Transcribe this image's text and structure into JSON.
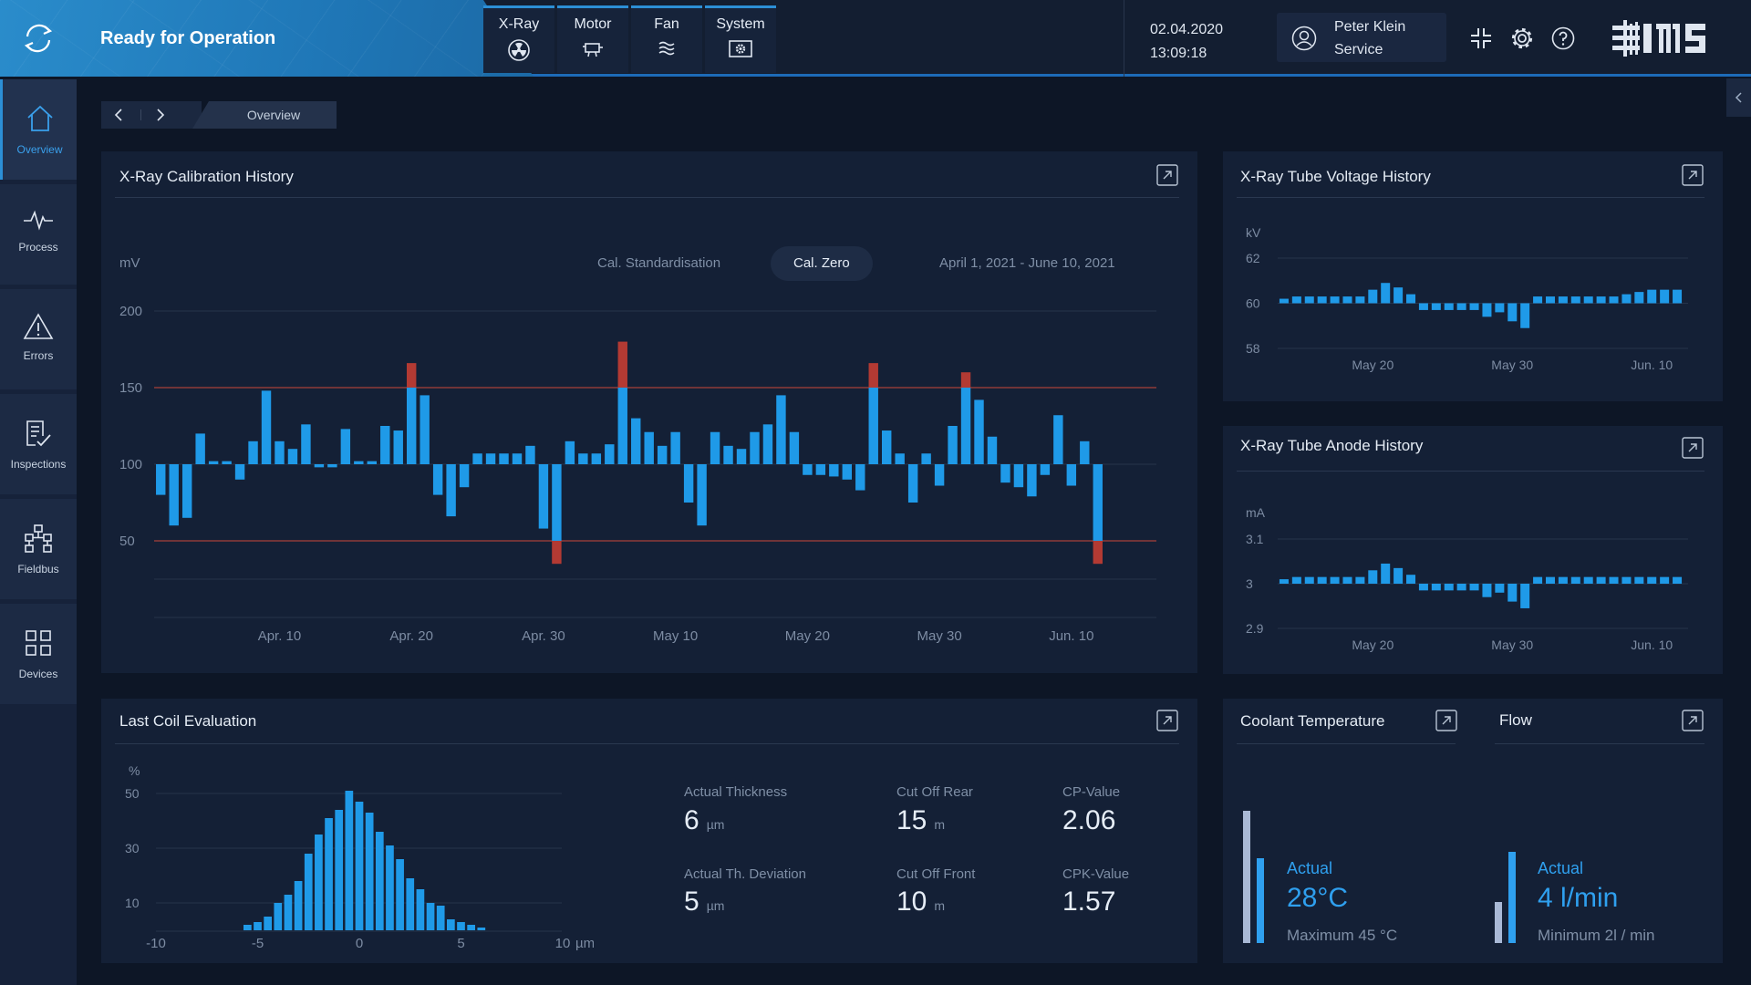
{
  "header": {
    "status": "Ready for Operation",
    "modules": [
      {
        "label": "X-Ray",
        "icon": "radiation-icon"
      },
      {
        "label": "Motor",
        "icon": "motor-icon"
      },
      {
        "label": "Fan",
        "icon": "fan-icon"
      },
      {
        "label": "System",
        "icon": "system-icon"
      }
    ],
    "date": "02.04.2020",
    "time": "13:09:18",
    "user": {
      "name": "Peter Klein",
      "role": "Service"
    },
    "logo": "IMS"
  },
  "sidebar": {
    "items": [
      {
        "label": "Overview",
        "icon": "home-icon",
        "active": true
      },
      {
        "label": "Process",
        "icon": "pulse-icon"
      },
      {
        "label": "Errors",
        "icon": "warning-icon"
      },
      {
        "label": "Inspections",
        "icon": "checklist-icon"
      },
      {
        "label": "Fieldbus",
        "icon": "network-icon"
      },
      {
        "label": "Devices",
        "icon": "devices-icon"
      }
    ]
  },
  "breadcrumb": {
    "current": "Overview"
  },
  "calibration": {
    "title": "X-Ray Calibration History",
    "unit": "mV",
    "options": [
      "Cal. Standardisation",
      "Cal. Zero"
    ],
    "selected": "Cal. Zero",
    "range": "April 1, 2021 -  June 10, 2021"
  },
  "voltage": {
    "title": "X-Ray Tube Voltage History",
    "unit": "kV"
  },
  "anode": {
    "title": "X-Ray Tube Anode History",
    "unit": "mA"
  },
  "coil": {
    "title": "Last Coil Evaluation",
    "unit": "%",
    "stats": {
      "thickness": {
        "label": "Actual Thickness",
        "value": "6",
        "unit": "µm"
      },
      "cut_rear": {
        "label": "Cut Off Rear",
        "value": "15",
        "unit": "m"
      },
      "cp": {
        "label": "CP-Value",
        "value": "2.06"
      },
      "deviation": {
        "label": "Actual Th. Deviation",
        "value": "5",
        "unit": "µm"
      },
      "cut_front": {
        "label": "Cut Off Front",
        "value": "10",
        "unit": "m"
      },
      "cpk": {
        "label": "CPK-Value",
        "value": "1.57"
      }
    }
  },
  "coolant": {
    "title": "Coolant Temperature",
    "actual_label": "Actual",
    "actual": "28°C",
    "limit": "Maximum 45 °C",
    "level_fraction": 0.62,
    "max_fraction": 0.97
  },
  "flow": {
    "title": "Flow",
    "actual_label": "Actual",
    "actual": "4 l/min",
    "limit": "Minimum 2l / min",
    "level_fraction": 0.78,
    "min_fraction": 0.35
  },
  "colors": {
    "accent": "#2fa0ef",
    "bar": "#1f9ae8",
    "alarm": "#b33a33",
    "limit_line": "#a8403a",
    "status_bg": "#2a8ccb"
  },
  "chart_data": [
    {
      "type": "bar",
      "title": "X-Ray Calibration History",
      "ylabel": "mV",
      "ylim": [
        0,
        200
      ],
      "yticks": [
        50,
        100,
        150,
        200
      ],
      "baseline": 100,
      "limits": [
        50,
        150
      ],
      "xlabels": [
        "Apr. 10",
        "Apr. 20",
        "Apr. 30",
        "May 10",
        "May 20",
        "May 30",
        "Jun. 10"
      ],
      "xlabel_index": [
        9,
        19,
        29,
        39,
        49,
        59,
        69
      ],
      "values": [
        80,
        60,
        65,
        120,
        102,
        102,
        90,
        115,
        148,
        115,
        110,
        126,
        98,
        98,
        123,
        102,
        102,
        125,
        122,
        166,
        145,
        80,
        66,
        85,
        107,
        107,
        107,
        107,
        112,
        58,
        35,
        115,
        107,
        107,
        113,
        180,
        130,
        121,
        112,
        121,
        75,
        60,
        121,
        112,
        110,
        121,
        126,
        145,
        121,
        93,
        93,
        92,
        90,
        83,
        166,
        122,
        107,
        75,
        107,
        86,
        125,
        160,
        142,
        118,
        88,
        85,
        79,
        93,
        132,
        86,
        115,
        35
      ],
      "alarm_threshold": {
        "high": 150,
        "low": 50
      }
    },
    {
      "type": "bar",
      "title": "X-Ray Tube Voltage History",
      "ylabel": "kV",
      "ylim": [
        58,
        62
      ],
      "yticks": [
        58,
        60,
        62
      ],
      "baseline": 60,
      "xlabels": [
        "May 20",
        "May 30",
        "Jun. 10"
      ],
      "xlabel_index": [
        7,
        18,
        29
      ],
      "values": [
        60.2,
        60.3,
        60.3,
        60.3,
        60.3,
        60.3,
        60.3,
        60.6,
        60.9,
        60.7,
        60.4,
        59.7,
        59.7,
        59.7,
        59.7,
        59.7,
        59.4,
        59.6,
        59.2,
        58.9,
        60.3,
        60.3,
        60.3,
        60.3,
        60.3,
        60.3,
        60.3,
        60.4,
        60.5,
        60.6,
        60.6,
        60.6
      ]
    },
    {
      "type": "bar",
      "title": "X-Ray Tube Anode History",
      "ylabel": "mA",
      "ylim": [
        2.9,
        3.1
      ],
      "yticks": [
        2.9,
        3.0,
        3.1
      ],
      "baseline": 3.0,
      "xlabels": [
        "May 20",
        "May 30",
        "Jun. 10"
      ],
      "xlabel_index": [
        7,
        18,
        29
      ],
      "values": [
        3.01,
        3.015,
        3.015,
        3.015,
        3.015,
        3.015,
        3.015,
        3.03,
        3.045,
        3.035,
        3.02,
        2.985,
        2.985,
        2.985,
        2.985,
        2.985,
        2.97,
        2.98,
        2.96,
        2.945,
        3.015,
        3.015,
        3.015,
        3.015,
        3.015,
        3.015,
        3.015,
        3.015,
        3.015,
        3.015,
        3.015,
        3.015
      ]
    },
    {
      "type": "bar",
      "title": "Last Coil Evaluation",
      "ylabel": "%",
      "xlabel": "µm",
      "ylim": [
        0,
        55
      ],
      "yticks": [
        10,
        30,
        50
      ],
      "xlim": [
        -10,
        10
      ],
      "xticks": [
        -10,
        -5,
        0,
        5,
        10
      ],
      "x": [
        -5.5,
        -5,
        -4.5,
        -4,
        -3.5,
        -3,
        -2.5,
        -2,
        -1.5,
        -1,
        -0.5,
        0,
        0.5,
        1,
        1.5,
        2,
        2.5,
        3,
        3.5,
        4,
        4.5,
        5,
        5.5,
        6
      ],
      "values": [
        2,
        3,
        5,
        10,
        13,
        18,
        28,
        35,
        41,
        44,
        51,
        47,
        43,
        36,
        31,
        26,
        19,
        15,
        10,
        9,
        4,
        3,
        2,
        1
      ]
    }
  ]
}
